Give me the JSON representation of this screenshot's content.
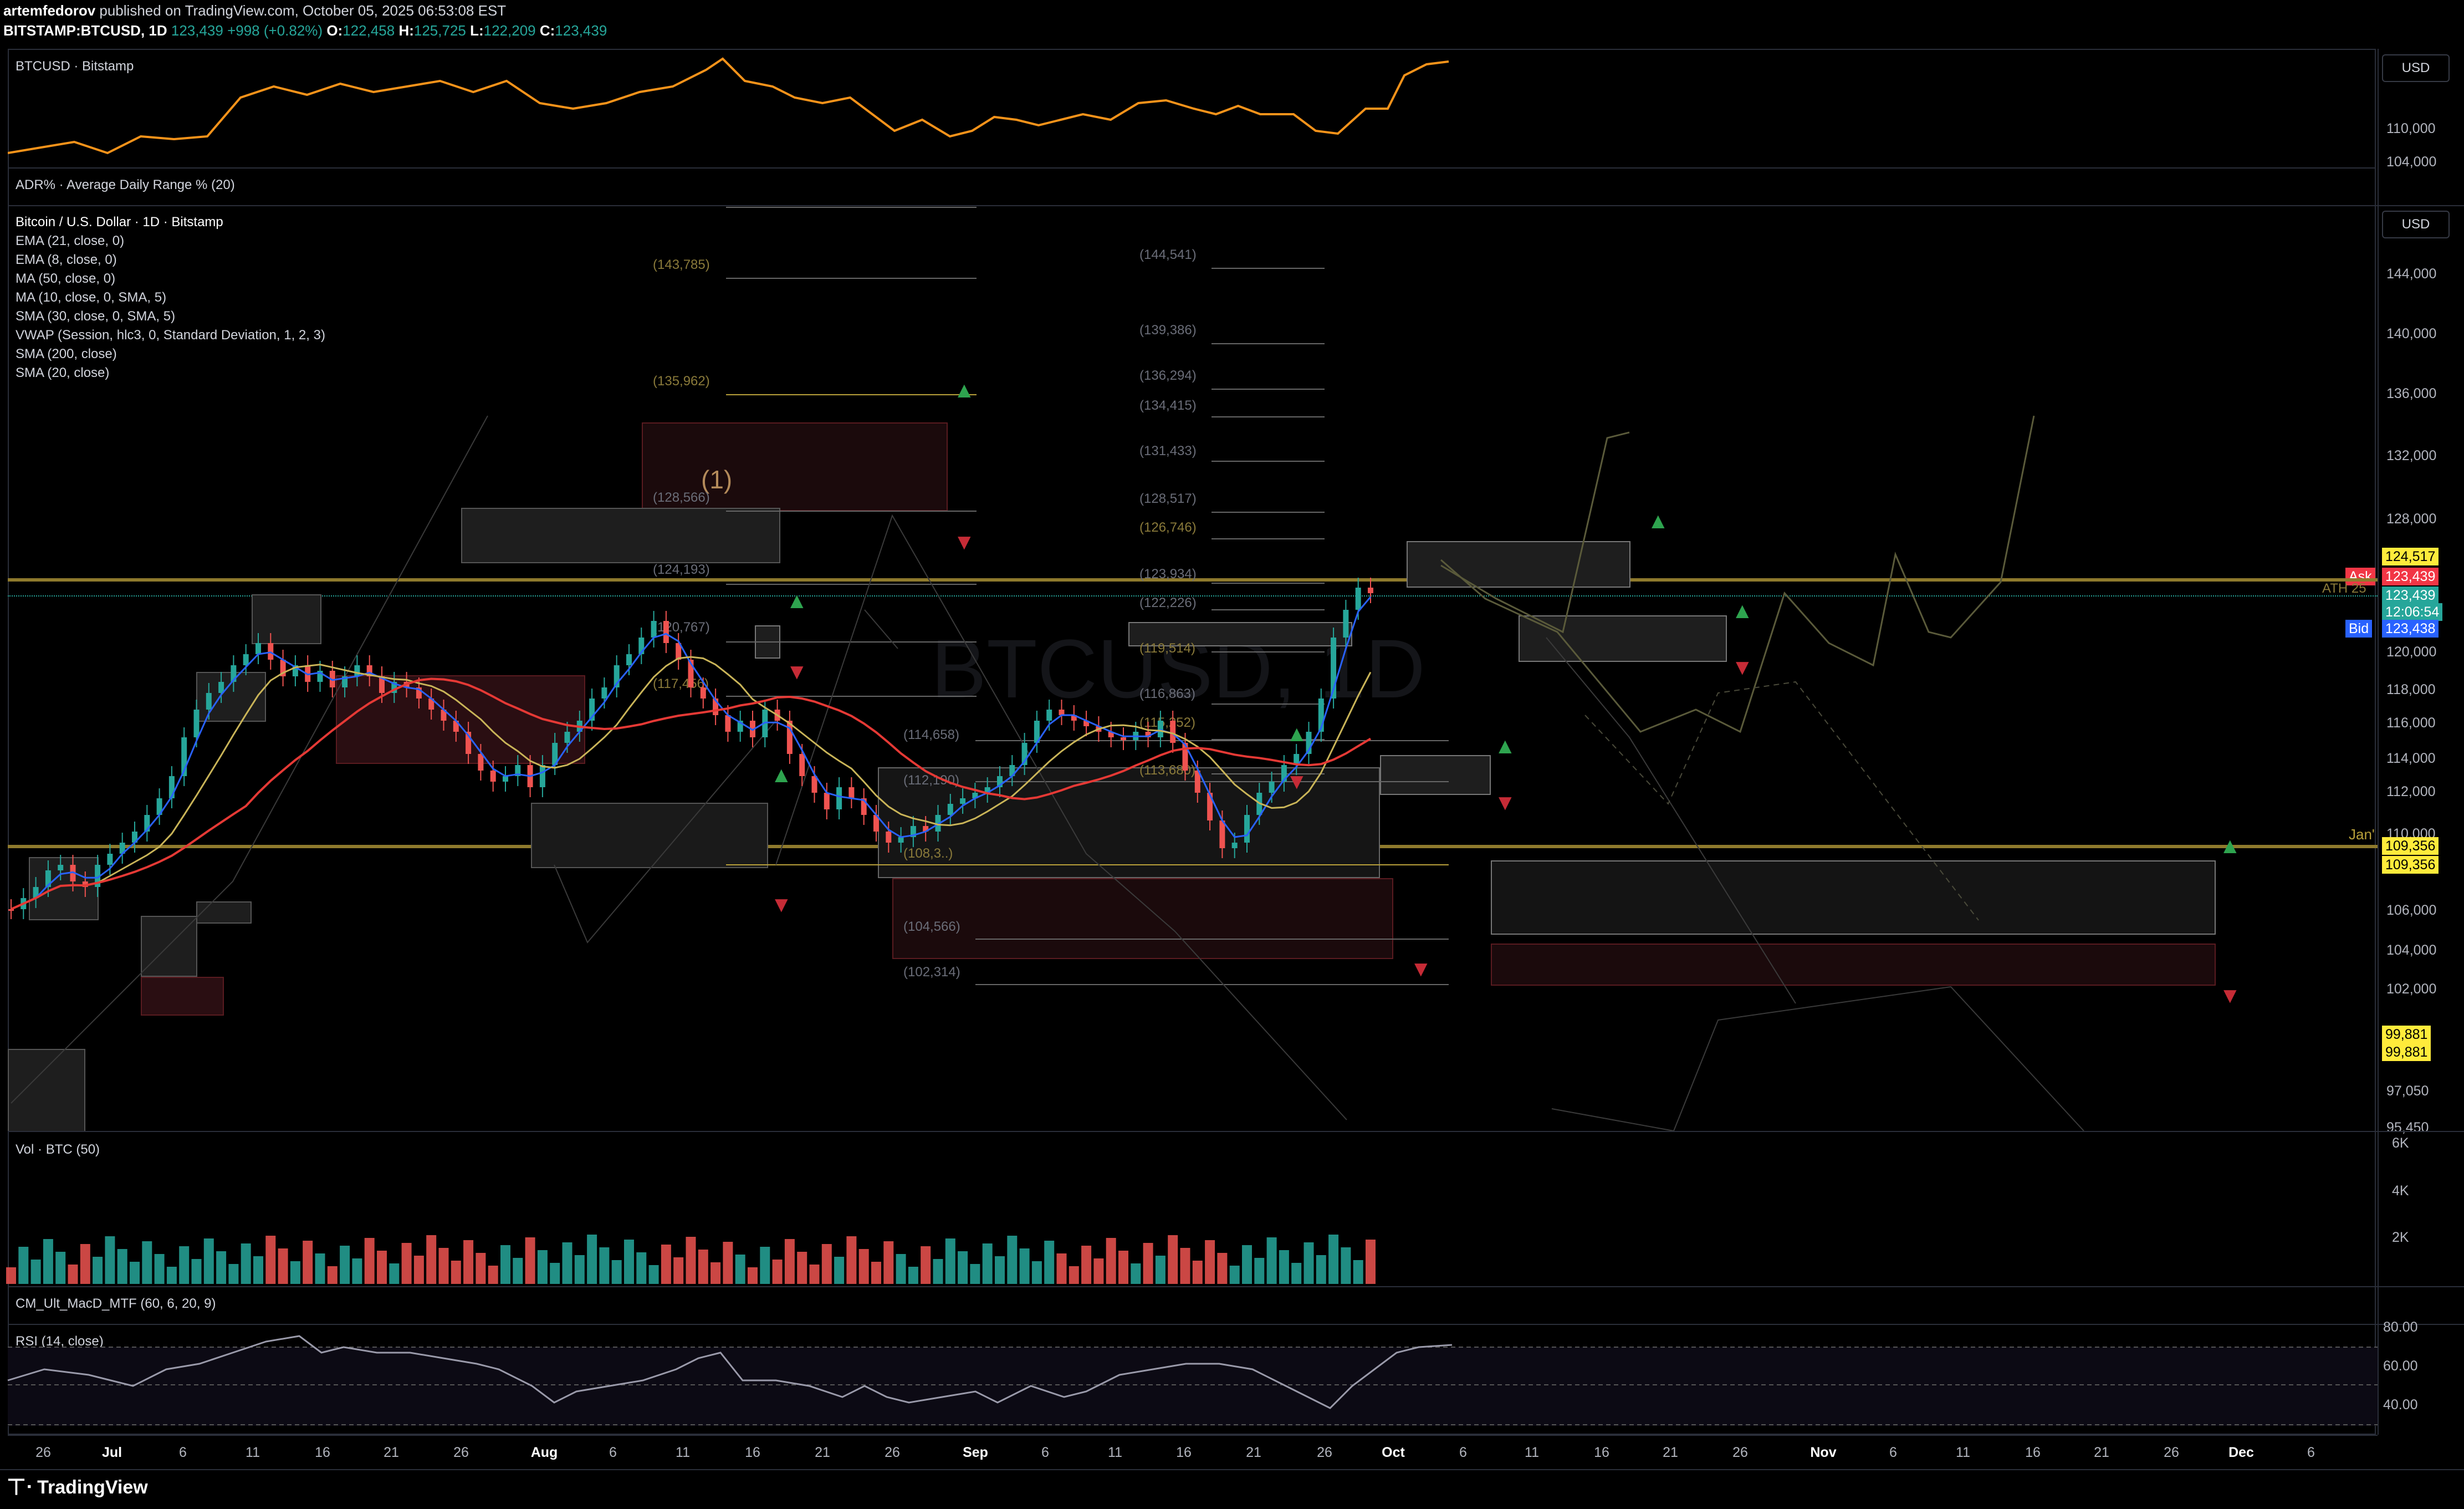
{
  "header": {
    "line1_user": "artemfedorov",
    "line1_rest": " published on TradingView.com, October 05, 2025 06:53:08 EST",
    "symbol": "BITSTAMP:BTCUSD, 1D",
    "price": "123,439",
    "change": "+998 (+0.82%)",
    "o_label": "O:",
    "o": "122,458",
    "h_label": "H:",
    "h": "125,725",
    "l_label": "L:",
    "l": "122,209",
    "c_label": "C:",
    "c": "123,439"
  },
  "top_pane": {
    "label": "BTCUSD · Bitstamp",
    "currency": "USD",
    "ticks": [
      "110,000",
      "104,000"
    ]
  },
  "adr_pane": {
    "label": "ADR% · Average Daily Range % (20)"
  },
  "main_pane": {
    "currency": "USD",
    "indicators": [
      "Bitcoin / U.S. Dollar · 1D · Bitstamp",
      "EMA (21, close, 0)",
      "EMA (8, close, 0)",
      "MA (50, close, 0)",
      "MA (10, close, 0, SMA, 5)",
      "SMA (30, close, 0, SMA, 5)",
      "VWAP (Session, hlc3, 0, Standard Deviation, 1, 2, 3)",
      "SMA (200, close)",
      "SMA (20, close)"
    ],
    "watermark": "BTCUSD, 1D",
    "wave_label": "(1)",
    "ath_label": "ATH 25",
    "jan_label": "Jan'",
    "y_ticks": [
      "144,000",
      "140,000",
      "136,000",
      "132,000",
      "128,000",
      "120,000",
      "118,000",
      "116,000",
      "114,000",
      "112,000",
      "110,000",
      "106,000",
      "104,000",
      "102,000",
      "97,050",
      "95,450"
    ],
    "tags": {
      "level_high": "124,517",
      "ask_label": "Ask",
      "ask": "123,439",
      "last": "123,439",
      "countdown": "12:06:54",
      "bid_label": "Bid",
      "bid": "123,438",
      "support_a": "109,356",
      "support_b": "109,356",
      "low_a": "99,881",
      "low_b": "99,881"
    },
    "levels_left": [
      "(143,785)",
      "(135,962)",
      "(128,566)",
      "(124,193)",
      "(120,767)",
      "(117,456)"
    ],
    "levels_mid": [
      "(144,541)",
      "(139,386)",
      "(136,294)",
      "(134,415)",
      "(131,433)",
      "(128,517)",
      "(126,746)",
      "(123,934)",
      "(122,226)",
      "(119,514)",
      "(116,863)",
      "(115,252)",
      "(113,680)"
    ],
    "levels_low": [
      "(114,658)",
      "(112,190)",
      "(108,3..)",
      "(104,566)",
      "(102,314)"
    ]
  },
  "volume_pane": {
    "label": "Vol · BTC (50)",
    "ticks": [
      "6K",
      "4K",
      "2K"
    ]
  },
  "macd_pane": {
    "label": "CM_Ult_MacD_MTF (60, 6, 20, 9)"
  },
  "rsi_pane": {
    "label": "RSI (14, close)",
    "ticks": [
      "80.00",
      "60.00",
      "40.00"
    ]
  },
  "x_axis": [
    "26",
    "Jul",
    "6",
    "11",
    "16",
    "21",
    "26",
    "Aug",
    "6",
    "11",
    "16",
    "21",
    "26",
    "Sep",
    "6",
    "11",
    "16",
    "21",
    "26",
    "Oct",
    "6",
    "11",
    "16",
    "21",
    "26",
    "Nov",
    "6",
    "11",
    "16",
    "21",
    "26",
    "Dec",
    "6"
  ],
  "footer": {
    "brand": "TradingView"
  },
  "colors": {
    "up": "#26a69a",
    "down": "#ef5350",
    "accent_gold": "#b8a03a",
    "ask": "#f23645",
    "bid": "#2962ff"
  }
}
